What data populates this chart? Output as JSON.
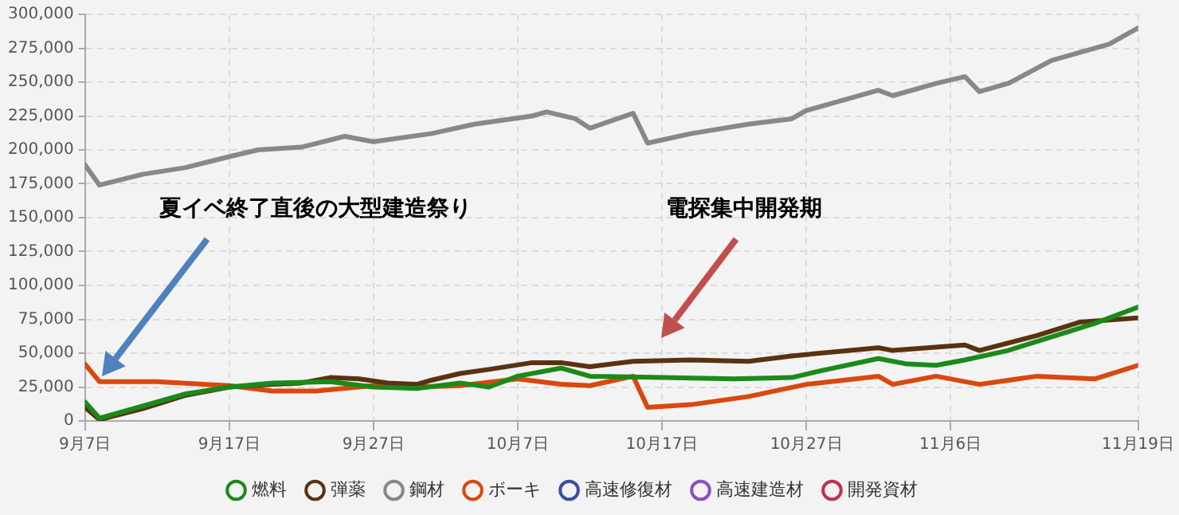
{
  "chart_data": {
    "type": "line",
    "annotations": [
      "夏イベ終了直後の大型建造祭り",
      "電探集中開発期"
    ],
    "xlim": [
      "--09-07",
      "--11-19"
    ],
    "xticks": [
      {
        "value": "--09-07",
        "label": "9月7日"
      },
      {
        "value": "--09-17",
        "label": "9月17日"
      },
      {
        "value": "--09-27",
        "label": "9月27日"
      },
      {
        "value": "--10-07",
        "label": "10月7日"
      },
      {
        "value": "--10-17",
        "label": "10月17日"
      },
      {
        "value": "--10-27",
        "label": "10月27日"
      },
      {
        "value": "--11-06",
        "label": "11月6日"
      },
      {
        "value": "--11-19",
        "label": "11月19日"
      }
    ],
    "ylim": [
      0,
      300000
    ],
    "yticks": [
      {
        "value": 0,
        "label": "0"
      },
      {
        "value": 25000,
        "label": "25,000"
      },
      {
        "value": 50000,
        "label": "50,000"
      },
      {
        "value": 75000,
        "label": "75,000"
      },
      {
        "value": 100000,
        "label": "100,000"
      },
      {
        "value": 125000,
        "label": "125,000"
      },
      {
        "value": 150000,
        "label": "150,000"
      },
      {
        "value": 175000,
        "label": "175,000"
      },
      {
        "value": 200000,
        "label": "200,000"
      },
      {
        "value": 225000,
        "label": "225,000"
      },
      {
        "value": 250000,
        "label": "250,000"
      },
      {
        "value": 275000,
        "label": "275,000"
      },
      {
        "value": 300000,
        "label": "300,000"
      }
    ],
    "grid": true,
    "legend": "bottom",
    "marker": "none",
    "line_style": "solid",
    "series": [
      {
        "name": "燃料",
        "color": "#1a8a1a",
        "x": [
          "--09-07",
          "--09-08",
          "--09-10",
          "--09-14",
          "--09-17",
          "--09-20",
          "--09-24",
          "--09-27",
          "--09-30",
          "--10-03",
          "--10-05",
          "--10-07",
          "--10-10",
          "--10-12",
          "--10-17",
          "--10-22",
          "--10-26",
          "--10-28",
          "--11-01",
          "--11-03",
          "--11-05",
          "--11-07",
          "--11-10",
          "--11-13",
          "--11-16",
          "--11-19"
        ],
        "values": [
          14000,
          2000,
          8000,
          20000,
          25000,
          28000,
          29000,
          25000,
          24000,
          28000,
          25000,
          33000,
          39000,
          33000,
          32000,
          31000,
          32000,
          37000,
          46000,
          42000,
          41000,
          45000,
          52000,
          62000,
          72000,
          84000
        ]
      },
      {
        "name": "弾薬",
        "color": "#5a3210",
        "x": [
          "--09-07",
          "--09-08",
          "--09-11",
          "--09-14",
          "--09-17",
          "--09-20",
          "--09-22",
          "--09-24",
          "--09-26",
          "--09-28",
          "--09-30",
          "--10-01",
          "--10-03",
          "--10-05",
          "--10-08",
          "--10-10",
          "--10-12",
          "--10-15",
          "--10-19",
          "--10-23",
          "--10-26",
          "--11-01",
          "--11-02",
          "--11-07",
          "--11-08",
          "--11-12",
          "--11-15",
          "--11-19"
        ],
        "values": [
          10000,
          1000,
          9000,
          19000,
          25000,
          27000,
          28000,
          32000,
          31000,
          28000,
          27000,
          30000,
          35000,
          38000,
          43000,
          43000,
          40000,
          44000,
          45000,
          44000,
          48000,
          54000,
          52000,
          56000,
          52000,
          63000,
          73000,
          76000
        ]
      },
      {
        "name": "鋼材",
        "color": "#888888",
        "x": [
          "--09-07",
          "--09-08",
          "--09-11",
          "--09-14",
          "--09-17",
          "--09-19",
          "--09-22",
          "--09-25",
          "--09-27",
          "--10-01",
          "--10-04",
          "--10-08",
          "--10-09",
          "--10-11",
          "--10-12",
          "--10-15",
          "--10-16",
          "--10-19",
          "--10-23",
          "--10-26",
          "--10-27",
          "--11-01",
          "--11-02",
          "--11-05",
          "--11-07",
          "--11-08",
          "--11-10",
          "--11-13",
          "--11-17",
          "--11-19"
        ],
        "values": [
          189000,
          174000,
          182000,
          187000,
          195000,
          200000,
          202000,
          210000,
          206000,
          212000,
          219000,
          225000,
          228000,
          223000,
          216000,
          227000,
          205000,
          212000,
          219000,
          223000,
          229000,
          244000,
          240000,
          249000,
          254000,
          243000,
          249000,
          266000,
          278000,
          290000
        ]
      },
      {
        "name": "ボーキ",
        "color": "#d9480f",
        "x": [
          "--09-07",
          "--09-08",
          "--09-12",
          "--09-17",
          "--09-20",
          "--09-23",
          "--09-27",
          "--09-30",
          "--10-03",
          "--10-07",
          "--10-10",
          "--10-12",
          "--10-15",
          "--10-16",
          "--10-19",
          "--10-23",
          "--10-27",
          "--11-01",
          "--11-02",
          "--11-05",
          "--11-08",
          "--11-12",
          "--11-16",
          "--11-19"
        ],
        "values": [
          42000,
          29000,
          29000,
          26000,
          22000,
          22000,
          26000,
          25000,
          26000,
          31000,
          27000,
          26000,
          33000,
          10000,
          12000,
          18000,
          27000,
          33000,
          27000,
          33000,
          27000,
          33000,
          31000,
          41000
        ]
      },
      {
        "name": "高速修復材",
        "color": "#3a4fa0"
      },
      {
        "name": "高速建造材",
        "color": "#8a4fc0"
      },
      {
        "name": "開発資材",
        "color": "#c03050"
      }
    ]
  }
}
